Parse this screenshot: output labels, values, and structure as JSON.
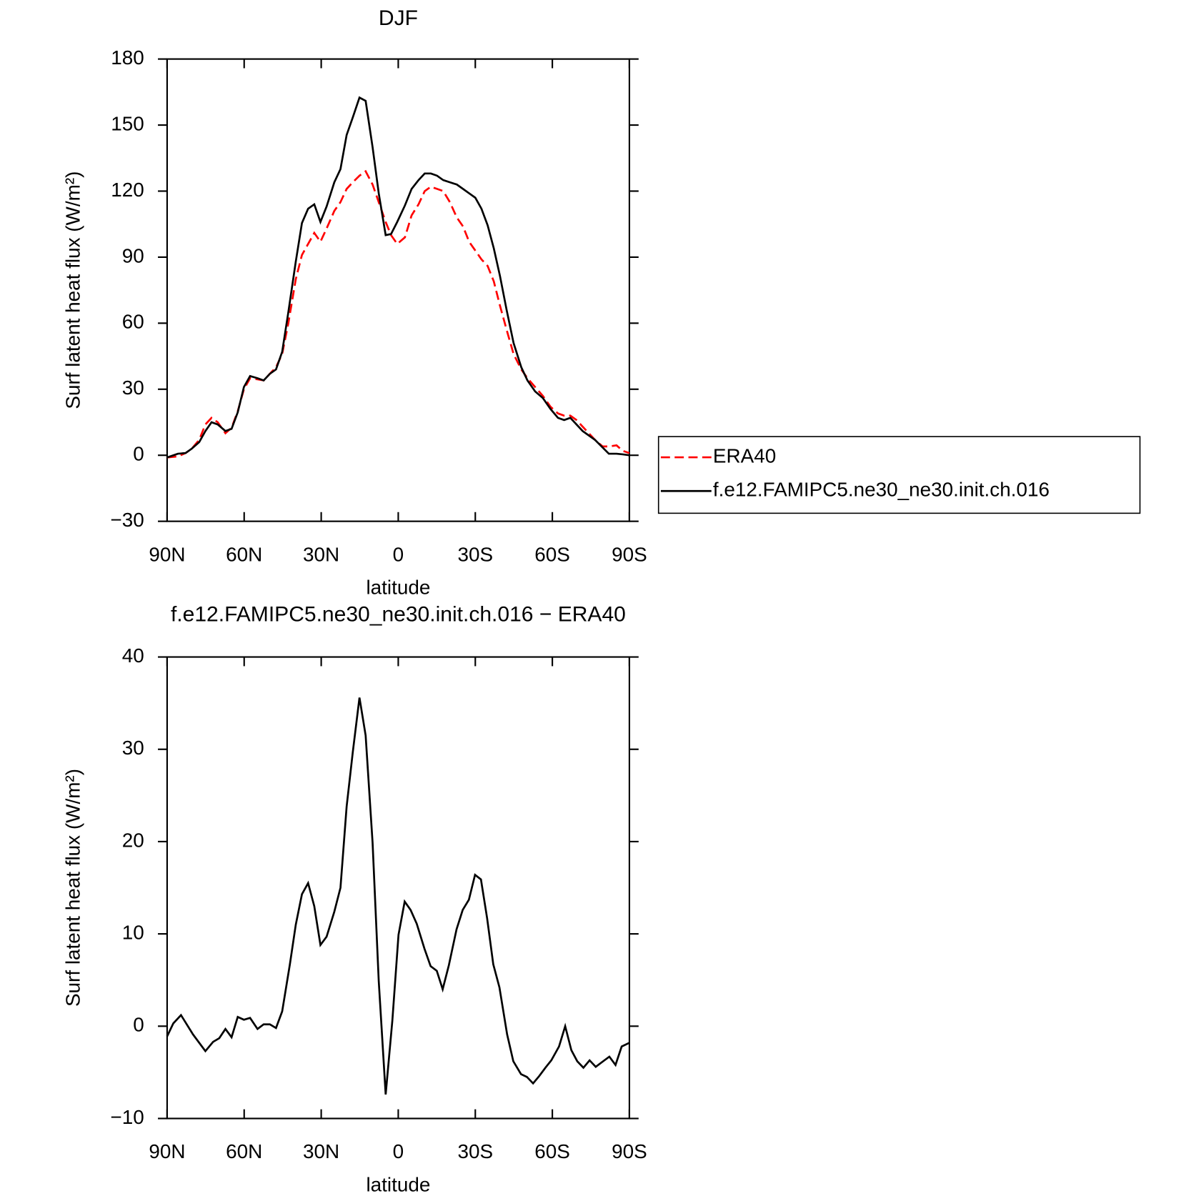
{
  "chart_data": [
    {
      "type": "line",
      "title": "DJF",
      "xlabel": "latitude",
      "ylabel": "Surf latent heat flux (W/m²)",
      "xlim": [
        90,
        -90
      ],
      "ylim": [
        -30,
        180
      ],
      "xticks": [
        {
          "value": 90,
          "label": "90N"
        },
        {
          "value": 60,
          "label": "60N"
        },
        {
          "value": 30,
          "label": "30N"
        },
        0,
        {
          "value": -30,
          "label": "30S"
        },
        {
          "value": -60,
          "label": "60S"
        },
        {
          "value": -90,
          "label": "90S"
        }
      ],
      "yticks": [
        {
          "value": -30,
          "label": "−30"
        },
        0,
        30,
        60,
        90,
        120,
        150,
        180
      ],
      "legend": "right",
      "x": [
        90,
        85.8,
        82.8,
        80.4,
        77.5,
        75.1,
        72.7,
        70.3,
        67.3,
        64.9,
        62.5,
        60.1,
        57.7,
        54.8,
        52.4,
        50.0,
        47.6,
        45.2,
        42.8,
        39.9,
        37.5,
        35.1,
        32.7,
        30.3,
        27.9,
        24.9,
        22.5,
        20.1,
        17.7,
        15.1,
        12.7,
        10.0,
        7.6,
        4.9,
        2.8,
        0.4,
        -2.6,
        -5.2,
        -7.9,
        -10.3,
        -12.7,
        -15.1,
        -17.5,
        -20.1,
        -22.8,
        -25.2,
        -27.6,
        -30.0,
        -32.4,
        -34.8,
        -37.2,
        -39.6,
        -42.2,
        -44.9,
        -47.9,
        -50.3,
        -53.3,
        -56.3,
        -59.3,
        -62.2,
        -64.6,
        -67.0,
        -69.4,
        -71.8,
        -74.2,
        -76.6,
        -79.6,
        -82.0,
        -85.0,
        -87.4,
        -90
      ],
      "series": [
        {
          "name": "ERA40",
          "color": "#ff0000",
          "dash": "dashed",
          "values": [
            -1,
            -0.5,
            1,
            3,
            7,
            14,
            17,
            15,
            10,
            12.5,
            20,
            30,
            35,
            34.5,
            34,
            37,
            40,
            46,
            60,
            80,
            91,
            96,
            101,
            97,
            103,
            111,
            115,
            121,
            124,
            127,
            129,
            123,
            115,
            106,
            100,
            96,
            99,
            109,
            114,
            120,
            122,
            121,
            120,
            115,
            108,
            104,
            97,
            93,
            89,
            86,
            79,
            68,
            57,
            46,
            39,
            35,
            31,
            27,
            22,
            19,
            18,
            18,
            16,
            13,
            10,
            7,
            4,
            4,
            4.5,
            2,
            1
          ]
        },
        {
          "name": "f.e12.FAMIPC5.ne30_ne30.init.ch.016",
          "color": "#000000",
          "dash": "solid",
          "values": [
            -1,
            0.7,
            1,
            3,
            6,
            11,
            15,
            14,
            11,
            12,
            19.5,
            31,
            36,
            35,
            34,
            37,
            39,
            47,
            65,
            88,
            105.5,
            112,
            114,
            106,
            113,
            124,
            130,
            145.5,
            153.5,
            162.5,
            161,
            140,
            119,
            100,
            100.5,
            106,
            113.5,
            121,
            125,
            128,
            128,
            127,
            125,
            124,
            123,
            121,
            119,
            117,
            112,
            104.5,
            94,
            81.5,
            66,
            51,
            40,
            34,
            29,
            26,
            21,
            17,
            16,
            17,
            14,
            11,
            9,
            7,
            3.5,
            0.7,
            0.7,
            0.4,
            0
          ]
        }
      ]
    },
    {
      "type": "line",
      "title": "f.e12.FAMIPC5.ne30_ne30.init.ch.016 − ERA40",
      "xlabel": "latitude",
      "ylabel": "Surf latent heat flux (W/m²)",
      "xlim": [
        90,
        -90
      ],
      "ylim": [
        -10,
        40
      ],
      "xticks": [
        {
          "value": 90,
          "label": "90N"
        },
        {
          "value": 60,
          "label": "60N"
        },
        {
          "value": 30,
          "label": "30N"
        },
        0,
        {
          "value": -30,
          "label": "30S"
        },
        {
          "value": -60,
          "label": "60S"
        },
        {
          "value": -90,
          "label": "90S"
        }
      ],
      "yticks": [
        {
          "value": -10,
          "label": "−10"
        },
        0,
        10,
        20,
        30,
        40
      ],
      "color": "#000000",
      "x": [
        90,
        87.6,
        84.6,
        79.9,
        75.1,
        72.1,
        69.7,
        67.3,
        64.9,
        62.5,
        60.1,
        57.7,
        54.8,
        52.4,
        50.0,
        47.6,
        45.2,
        42.2,
        39.9,
        37.5,
        35.1,
        32.7,
        30.3,
        27.9,
        24.9,
        22.5,
        20.1,
        17.7,
        15.1,
        12.7,
        10.0,
        7.6,
        4.9,
        2.3,
        -0.1,
        -2.5,
        -4.8,
        -7.2,
        -10.2,
        -12.6,
        -15.0,
        -17.3,
        -19.7,
        -22.7,
        -25.1,
        -27.5,
        -29.9,
        -32.2,
        -34.6,
        -37.0,
        -39.4,
        -42.4,
        -44.8,
        -47.8,
        -50.1,
        -52.5,
        -54.9,
        -57.3,
        -59.6,
        -62.6,
        -65.0,
        -67.4,
        -69.7,
        -72.1,
        -74.5,
        -76.9,
        -79.3,
        -82.2,
        -84.6,
        -87.0,
        -90
      ],
      "values": [
        -1.1,
        0.3,
        1.2,
        -0.9,
        -2.7,
        -1.7,
        -1.3,
        -0.3,
        -1.2,
        1.0,
        0.7,
        0.9,
        -0.3,
        0.2,
        0.2,
        -0.2,
        1.6,
        6.7,
        11.0,
        14.3,
        15.5,
        13.0,
        8.8,
        9.7,
        12.4,
        15.0,
        23.8,
        29.7,
        35.6,
        31.5,
        19.9,
        4.9,
        -7.4,
        0.6,
        9.9,
        13.5,
        12.6,
        11.1,
        8.4,
        6.5,
        6.0,
        4.0,
        6.6,
        10.5,
        12.6,
        13.7,
        16.4,
        15.9,
        11.7,
        6.7,
        4.2,
        -0.9,
        -3.8,
        -5.2,
        -5.5,
        -6.2,
        -5.4,
        -4.5,
        -3.7,
        -2.2,
        0,
        -2.6,
        -3.8,
        -4.5,
        -3.7,
        -4.4,
        -3.9,
        -3.3,
        -4.2,
        -2.2,
        -1.8
      ]
    }
  ]
}
